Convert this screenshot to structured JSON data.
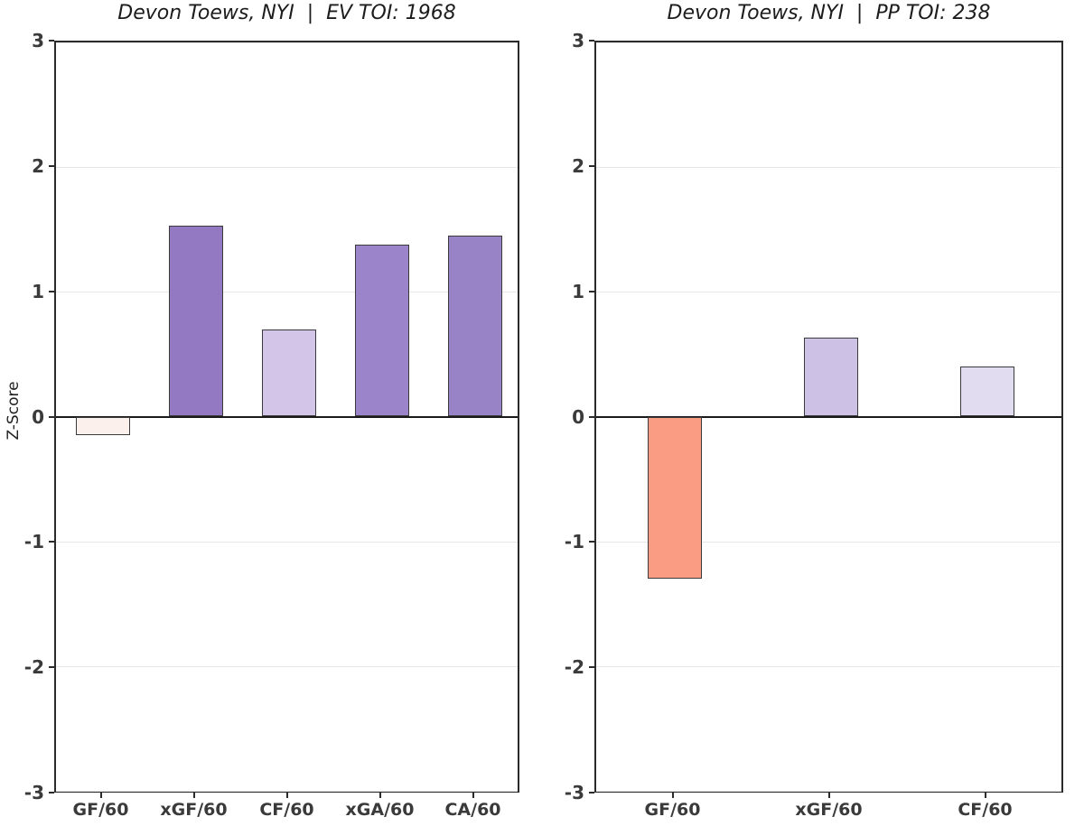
{
  "figure": {
    "ylabel": "Z-Score",
    "background_color": "#ffffff",
    "spine_color": "#2b2b2b",
    "grid_color": "#e7e7e7",
    "zero_line_color": "#1a1a1a",
    "tick_label_color": "#3a3a3a",
    "bar_edge_color": "#3a3a3a",
    "title_color": "#1c1c1c"
  },
  "chart_data": [
    {
      "type": "bar",
      "title": "Devon Toews, NYI  |  EV TOI: 1968",
      "xlabel": "",
      "ylabel": "Z-Score",
      "ylim": [
        -3,
        3
      ],
      "yticks": [
        3,
        2,
        1,
        0,
        -1,
        -2,
        -3
      ],
      "grid": true,
      "legend": false,
      "categories": [
        "GF/60",
        "xGF/60",
        "CF/60",
        "xGA/60",
        "CA/60"
      ],
      "values": [
        -0.15,
        1.53,
        0.7,
        1.38,
        1.45
      ],
      "bar_colors": [
        "#fcf0ed",
        "#9279c2",
        "#d2c5e8",
        "#9b84c9",
        "#9983c7"
      ]
    },
    {
      "type": "bar",
      "title": "Devon Toews, NYI  |  PP TOI: 238",
      "xlabel": "",
      "ylabel": "",
      "ylim": [
        -3,
        3
      ],
      "yticks": [
        3,
        2,
        1,
        0,
        -1,
        -2,
        -3
      ],
      "grid": true,
      "legend": false,
      "categories": [
        "GF/60",
        "xGF/60",
        "CF/60"
      ],
      "values": [
        -1.3,
        0.63,
        0.4
      ],
      "bar_colors": [
        "#f99c83",
        "#cec1e6",
        "#e2dcf0"
      ]
    }
  ]
}
